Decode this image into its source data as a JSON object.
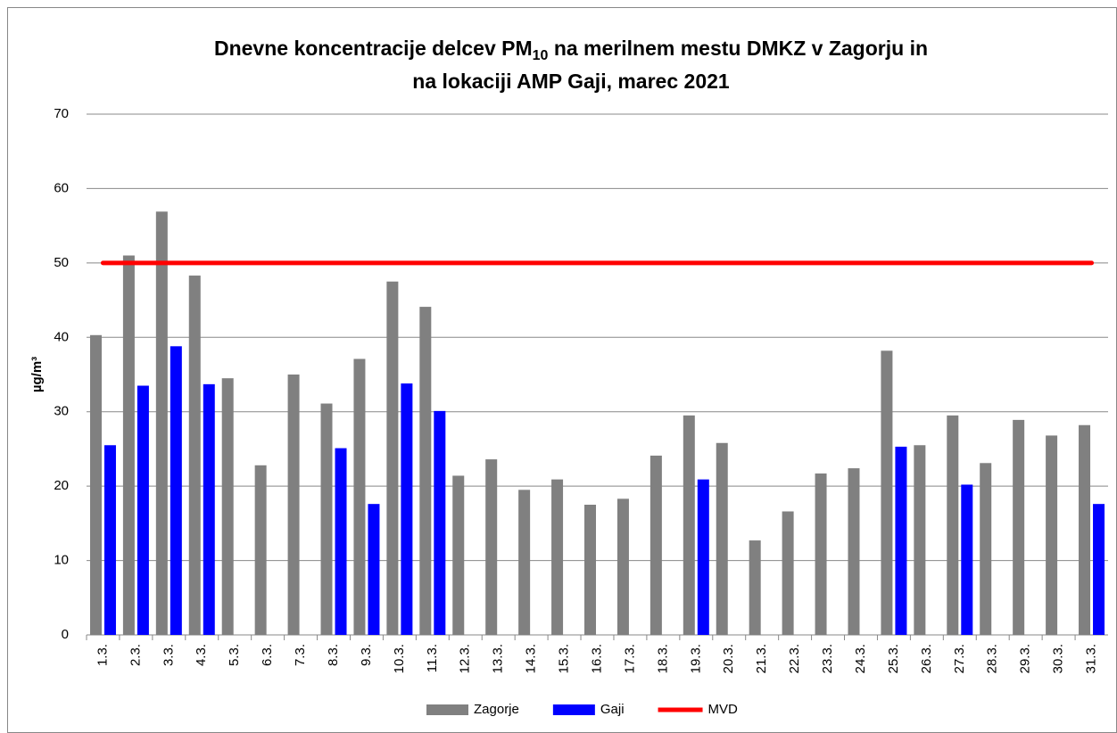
{
  "chart_data": {
    "type": "bar",
    "title": [
      "Dnevne koncentracije delcev PM",
      "10",
      " na merilnem mestu DMKZ v Zagorju in",
      "na lokaciji AMP Gaji, marec 2021"
    ],
    "y_label": "µg/m³",
    "categories": [
      "1.3.",
      "2.3.",
      "3.3.",
      "4.3.",
      "5.3.",
      "6.3.",
      "7.3.",
      "8.3.",
      "9.3.",
      "10.3.",
      "11.3.",
      "12.3.",
      "13.3.",
      "14.3.",
      "15.3.",
      "16.3.",
      "17.3.",
      "18.3.",
      "19.3.",
      "20.3.",
      "21.3.",
      "22.3.",
      "23.3.",
      "24.3.",
      "25.3.",
      "26.3.",
      "27.3.",
      "28.3.",
      "29.3.",
      "30.3.",
      "31.3."
    ],
    "series": [
      {
        "name": "Zagorje",
        "type": "bar",
        "color": "#808080",
        "values": [
          40.3,
          51,
          56.9,
          48.3,
          34.5,
          22.8,
          35,
          31.1,
          37.1,
          47.5,
          44.1,
          21.4,
          23.6,
          19.5,
          20.9,
          17.5,
          18.3,
          24.1,
          29.5,
          25.8,
          12.7,
          16.6,
          21.7,
          22.4,
          38.2,
          25.5,
          29.5,
          23.1,
          28.9,
          26.8,
          28.2
        ]
      },
      {
        "name": "Gaji",
        "type": "bar",
        "color": "#0000ff",
        "values": [
          25.5,
          33.5,
          38.8,
          33.7,
          null,
          null,
          null,
          25.1,
          17.6,
          33.8,
          30.1,
          null,
          null,
          null,
          null,
          null,
          null,
          null,
          20.9,
          null,
          null,
          null,
          null,
          null,
          25.3,
          null,
          20.2,
          null,
          null,
          null,
          17.6
        ]
      },
      {
        "name": "MVD",
        "type": "line",
        "color": "#ff0000",
        "values": [
          50,
          50,
          50,
          50,
          50,
          50,
          50,
          50,
          50,
          50,
          50,
          50,
          50,
          50,
          50,
          50,
          50,
          50,
          50,
          50,
          50,
          50,
          50,
          50,
          50,
          50,
          50,
          50,
          50,
          50,
          50
        ]
      }
    ],
    "ylim": [
      0,
      70
    ],
    "yticks": [
      0,
      10,
      20,
      30,
      40,
      50,
      60,
      70
    ],
    "grid": true,
    "legend": "bottom"
  }
}
